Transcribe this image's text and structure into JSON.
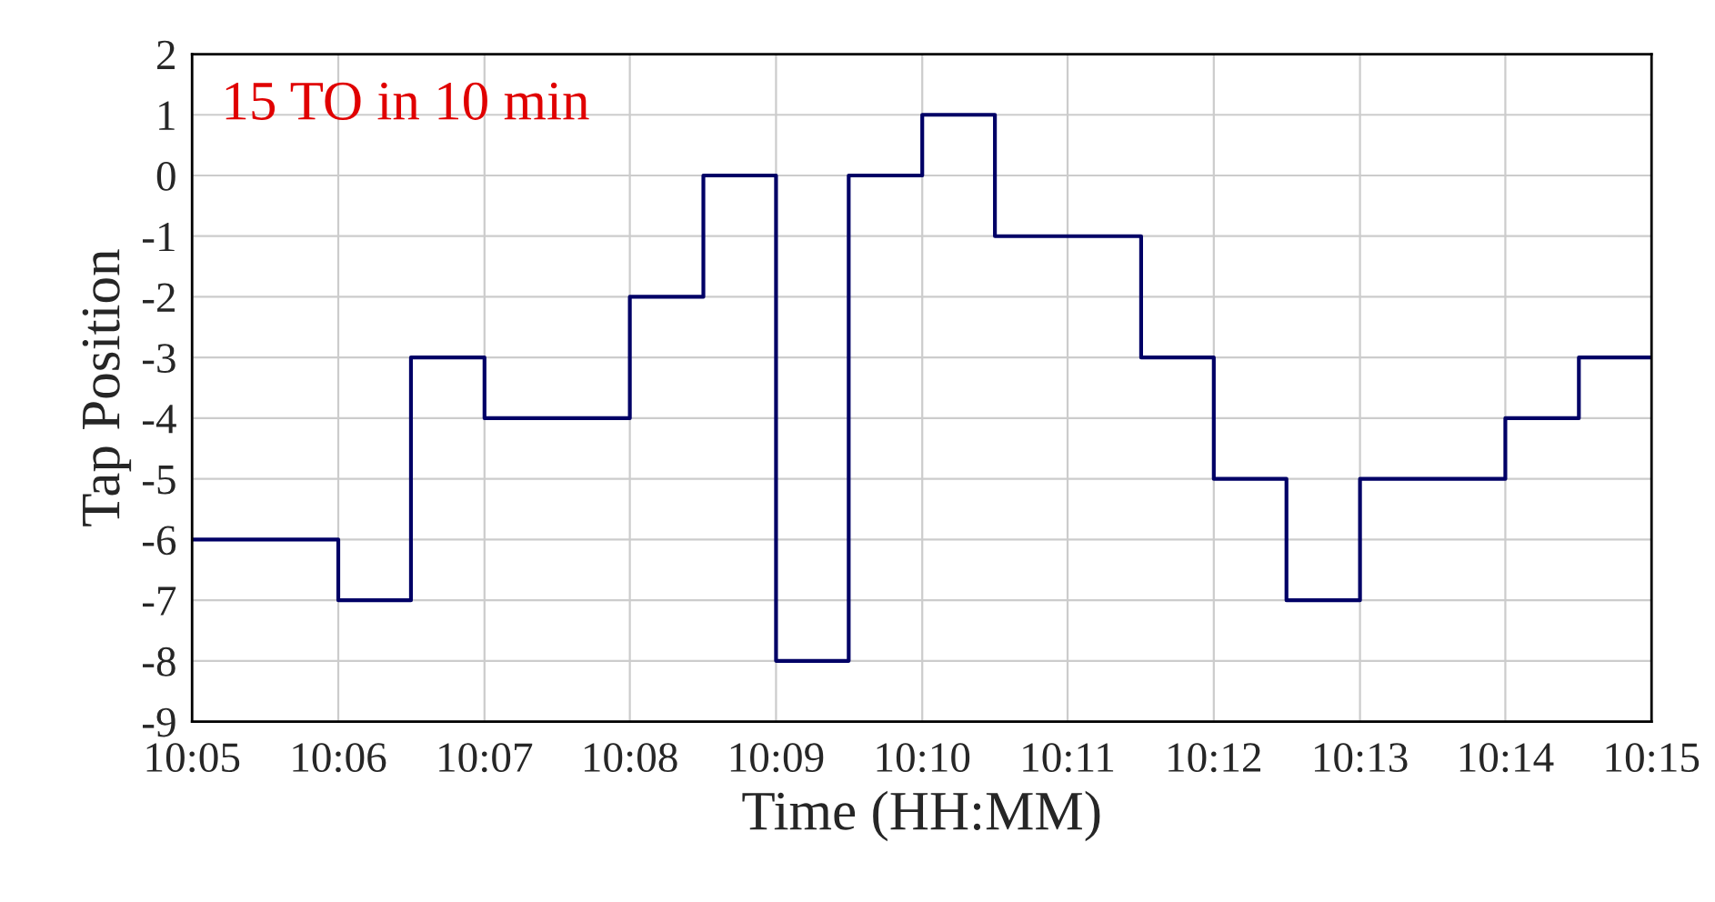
{
  "chart_data": {
    "type": "step",
    "xlabel": "Time (HH:MM)",
    "ylabel": "Tap Position",
    "annotations": [
      "15 TO in 10 min"
    ],
    "x": [
      10.0833,
      10.1,
      10.1083,
      10.1167,
      10.1333,
      10.1417,
      10.15,
      10.1583,
      10.1667,
      10.175,
      10.1917,
      10.2,
      10.2083,
      10.2167,
      10.2333,
      10.2417,
      10.25
    ],
    "series": [
      {
        "color": "#000066",
        "values": [
          -6,
          -7,
          -3,
          -4,
          -2,
          0,
          -8,
          0,
          1,
          -1,
          -3,
          -5,
          -7,
          -5,
          -4,
          -3,
          -3
        ]
      }
    ],
    "xlim": [
      10.0833,
      10.25
    ],
    "xticks": [
      {
        "value": 10.0833,
        "label": "10:05"
      },
      {
        "value": 10.1,
        "label": "10:06"
      },
      {
        "value": 10.1167,
        "label": "10:07"
      },
      {
        "value": 10.1333,
        "label": "10:08"
      },
      {
        "value": 10.15,
        "label": "10:09"
      },
      {
        "value": 10.1667,
        "label": "10:10"
      },
      {
        "value": 10.1833,
        "label": "10:11"
      },
      {
        "value": 10.2,
        "label": "10:12"
      },
      {
        "value": 10.2167,
        "label": "10:13"
      },
      {
        "value": 10.2333,
        "label": "10:14"
      },
      {
        "value": 10.25,
        "label": "10:15"
      }
    ],
    "ylim": [
      -9,
      2
    ],
    "yticks": [
      -9,
      -8,
      -7,
      -6,
      -5,
      -4,
      -3,
      -2,
      -1,
      0,
      1,
      2
    ],
    "grid": true,
    "legend": false,
    "line_style": "solid"
  }
}
